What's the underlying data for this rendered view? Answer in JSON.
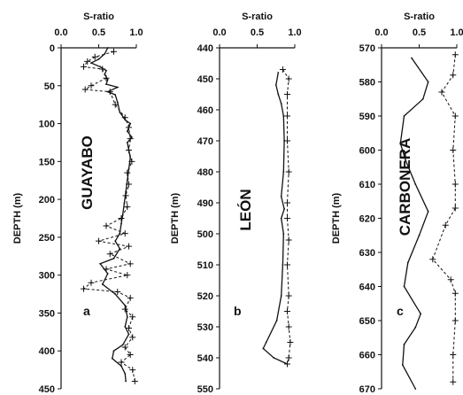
{
  "figure": {
    "top_axis_title": "S-ratio",
    "depth_axis_title": "DEPTH (m)"
  },
  "chart_data": [
    {
      "type": "line",
      "panel_label": "a",
      "formation": "GUAYABO",
      "xlabel": "S-ratio",
      "ylabel": "DEPTH (m)",
      "xlim": [
        0,
        1.0
      ],
      "ylim": [
        0,
        450
      ],
      "y_inverted": true,
      "x_ticks": [
        "0.0",
        "0.5",
        "1.0"
      ],
      "y_ticks": [
        "0",
        "50",
        "100",
        "150",
        "200",
        "250",
        "300",
        "350",
        "400",
        "450"
      ],
      "series": [
        {
          "style": "solid",
          "points": [
            [
              0.62,
              0
            ],
            [
              0.58,
              8
            ],
            [
              0.5,
              15
            ],
            [
              0.4,
              20
            ],
            [
              0.52,
              25
            ],
            [
              0.6,
              30
            ],
            [
              0.58,
              35
            ],
            [
              0.62,
              42
            ],
            [
              0.6,
              48
            ],
            [
              0.75,
              52
            ],
            [
              0.62,
              58
            ],
            [
              0.72,
              62
            ],
            [
              0.75,
              72
            ],
            [
              0.78,
              85
            ],
            [
              0.85,
              95
            ],
            [
              0.92,
              100
            ],
            [
              0.88,
              110
            ],
            [
              0.94,
              118
            ],
            [
              0.88,
              125
            ],
            [
              0.9,
              135
            ],
            [
              0.92,
              145
            ],
            [
              0.9,
              160
            ],
            [
              0.88,
              175
            ],
            [
              0.86,
              190
            ],
            [
              0.84,
              205
            ],
            [
              0.82,
              220
            ],
            [
              0.8,
              232
            ],
            [
              0.78,
              245
            ],
            [
              0.72,
              255
            ],
            [
              0.78,
              265
            ],
            [
              0.7,
              278
            ],
            [
              0.52,
              285
            ],
            [
              0.62,
              298
            ],
            [
              0.55,
              312
            ],
            [
              0.72,
              325
            ],
            [
              0.85,
              340
            ],
            [
              0.88,
              355
            ],
            [
              0.85,
              368
            ],
            [
              0.9,
              378
            ],
            [
              0.82,
              392
            ],
            [
              0.7,
              400
            ],
            [
              0.68,
              410
            ],
            [
              0.8,
              420
            ],
            [
              0.85,
              430
            ],
            [
              0.86,
              440
            ]
          ]
        },
        {
          "style": "dashed",
          "marker": "+",
          "points": [
            [
              0.7,
              5
            ],
            [
              0.45,
              12
            ],
            [
              0.35,
              18
            ],
            [
              0.3,
              25
            ],
            [
              0.55,
              28
            ],
            [
              0.6,
              40
            ],
            [
              0.4,
              50
            ],
            [
              0.32,
              55
            ],
            [
              0.65,
              58
            ],
            [
              0.72,
              75
            ],
            [
              0.85,
              92
            ],
            [
              0.9,
              105
            ],
            [
              0.92,
              120
            ],
            [
              0.9,
              135
            ],
            [
              0.94,
              150
            ],
            [
              0.88,
              165
            ],
            [
              0.9,
              180
            ],
            [
              0.86,
              195
            ],
            [
              0.88,
              210
            ],
            [
              0.8,
              225
            ],
            [
              0.6,
              235
            ],
            [
              0.85,
              245
            ],
            [
              0.5,
              255
            ],
            [
              0.9,
              262
            ],
            [
              0.65,
              272
            ],
            [
              0.92,
              285
            ],
            [
              0.6,
              292
            ],
            [
              0.88,
              300
            ],
            [
              0.4,
              310
            ],
            [
              0.3,
              318
            ],
            [
              0.75,
              322
            ],
            [
              0.92,
              330
            ],
            [
              0.85,
              345
            ],
            [
              0.95,
              355
            ],
            [
              0.9,
              370
            ],
            [
              0.95,
              382
            ],
            [
              0.85,
              395
            ],
            [
              0.92,
              405
            ],
            [
              0.8,
              415
            ],
            [
              0.95,
              425
            ],
            [
              0.98,
              440
            ]
          ]
        }
      ]
    },
    {
      "type": "line",
      "panel_label": "b",
      "formation": "LEÓN",
      "xlabel": "S-ratio",
      "ylabel": "DEPTH (m)",
      "xlim": [
        0,
        1.0
      ],
      "ylim": [
        440,
        550
      ],
      "y_inverted": true,
      "x_ticks": [
        "0.0",
        "0.5",
        "1.0"
      ],
      "y_ticks": [
        "440",
        "450",
        "460",
        "470",
        "480",
        "490",
        "500",
        "510",
        "520",
        "530",
        "540",
        "550"
      ],
      "series": [
        {
          "style": "solid",
          "points": [
            [
              0.78,
              448
            ],
            [
              0.75,
              452
            ],
            [
              0.78,
              455
            ],
            [
              0.82,
              458
            ],
            [
              0.85,
              462
            ],
            [
              0.86,
              470
            ],
            [
              0.85,
              480
            ],
            [
              0.82,
              488
            ],
            [
              0.86,
              492
            ],
            [
              0.82,
              495
            ],
            [
              0.85,
              500
            ],
            [
              0.84,
              510
            ],
            [
              0.82,
              520
            ],
            [
              0.76,
              528
            ],
            [
              0.62,
              535
            ],
            [
              0.58,
              537
            ],
            [
              0.72,
              540
            ],
            [
              0.9,
              542
            ]
          ]
        },
        {
          "style": "dashed",
          "marker": "+",
          "points": [
            [
              0.84,
              447
            ],
            [
              0.92,
              450
            ],
            [
              0.9,
              455
            ],
            [
              0.9,
              462
            ],
            [
              0.9,
              470
            ],
            [
              0.92,
              480
            ],
            [
              0.9,
              490
            ],
            [
              0.9,
              495
            ],
            [
              0.92,
              502
            ],
            [
              0.9,
              510
            ],
            [
              0.92,
              520
            ],
            [
              0.9,
              525
            ],
            [
              0.92,
              530
            ],
            [
              0.94,
              535
            ],
            [
              0.92,
              540
            ],
            [
              0.9,
              542
            ]
          ]
        }
      ]
    },
    {
      "type": "line",
      "panel_label": "c",
      "formation": "CARBONERA",
      "xlabel": "S-ratio",
      "ylabel": "DEPTH (m)",
      "xlim": [
        0,
        1.0
      ],
      "ylim": [
        570,
        670
      ],
      "y_inverted": true,
      "x_ticks": [
        "0.0",
        "0.5",
        "1.0"
      ],
      "y_ticks": [
        "570",
        "580",
        "590",
        "600",
        "610",
        "620",
        "630",
        "640",
        "650",
        "660",
        "670"
      ],
      "series": [
        {
          "style": "solid",
          "points": [
            [
              0.4,
              573
            ],
            [
              0.62,
              580
            ],
            [
              0.55,
              585
            ],
            [
              0.3,
              590
            ],
            [
              0.25,
              598
            ],
            [
              0.32,
              603
            ],
            [
              0.45,
              610
            ],
            [
              0.62,
              618
            ],
            [
              0.5,
              625
            ],
            [
              0.35,
              633
            ],
            [
              0.3,
              640
            ],
            [
              0.52,
              648
            ],
            [
              0.45,
              652
            ],
            [
              0.3,
              657
            ],
            [
              0.28,
              663
            ],
            [
              0.45,
              670
            ]
          ]
        },
        {
          "style": "dashed",
          "marker": "+",
          "points": [
            [
              0.98,
              572
            ],
            [
              0.95,
              578
            ],
            [
              0.8,
              583
            ],
            [
              0.98,
              590
            ],
            [
              0.95,
              600
            ],
            [
              0.98,
              610
            ],
            [
              0.98,
              617
            ],
            [
              0.85,
              622
            ],
            [
              0.68,
              632
            ],
            [
              0.92,
              638
            ],
            [
              0.98,
              642
            ],
            [
              0.98,
              650
            ],
            [
              0.95,
              660
            ],
            [
              0.95,
              668
            ]
          ]
        }
      ]
    }
  ]
}
